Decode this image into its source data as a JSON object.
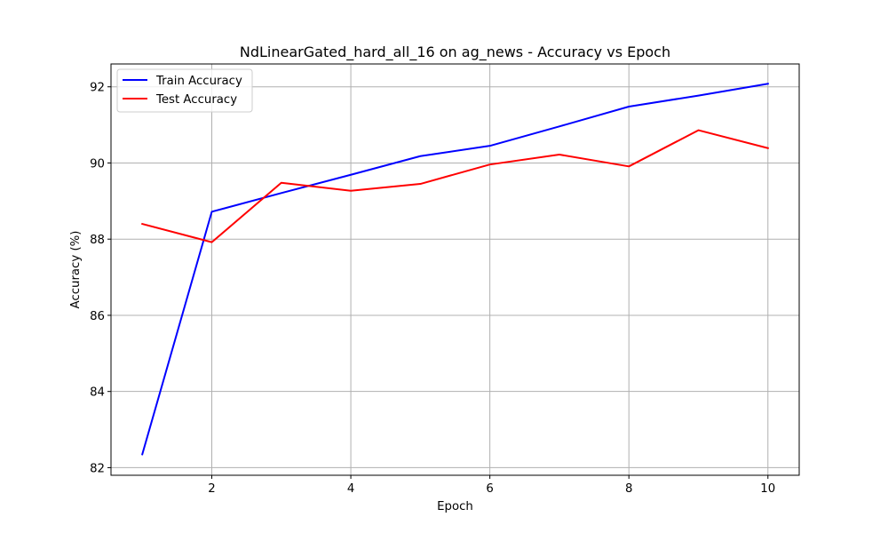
{
  "chart_data": {
    "type": "line",
    "title": "NdLinearGated_hard_all_16 on ag_news - Accuracy vs Epoch",
    "xlabel": "Epoch",
    "ylabel": "Accuracy (%)",
    "xlim": [
      0.55,
      10.45
    ],
    "ylim": [
      81.8,
      92.6
    ],
    "xticks": [
      2,
      4,
      6,
      8,
      10
    ],
    "yticks": [
      82,
      84,
      86,
      88,
      90,
      92
    ],
    "grid": true,
    "legend_position": "top-left",
    "x": [
      1,
      2,
      3,
      4,
      5,
      6,
      7,
      8,
      9,
      10
    ],
    "series": [
      {
        "name": "Train Accuracy",
        "color": "#0000ff",
        "values": [
          82.35,
          88.72,
          89.21,
          89.69,
          90.18,
          90.45,
          90.96,
          91.48,
          91.77,
          92.08
        ]
      },
      {
        "name": "Test Accuracy",
        "color": "#ff0000",
        "values": [
          88.4,
          87.92,
          89.48,
          89.27,
          89.45,
          89.96,
          90.22,
          89.91,
          90.86,
          90.39
        ]
      }
    ]
  }
}
